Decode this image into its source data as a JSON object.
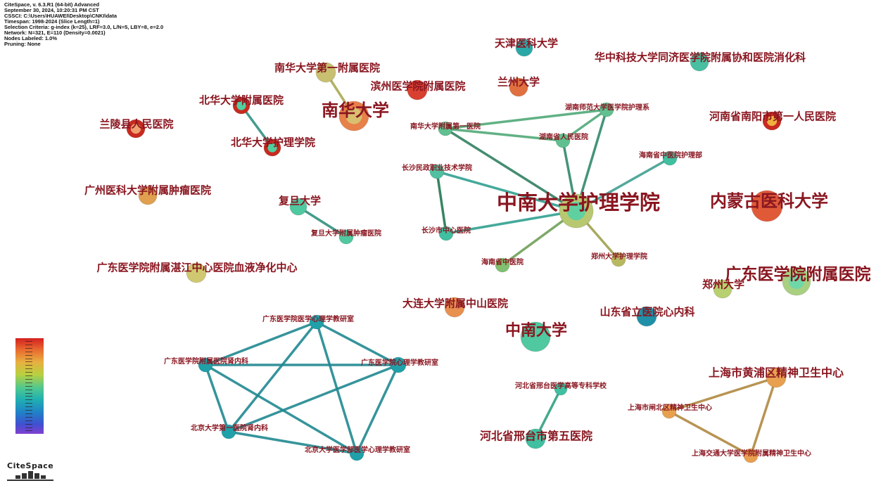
{
  "meta": {
    "lines": [
      "CiteSpace, v. 6.3.R1 (64-bit) Advanced",
      "September 30, 2024, 10:20:31 PM CST",
      "CSSCI: C:\\Users\\HUAWEI\\Desktop\\CNKI\\data",
      "Timespan: 1998-2024 (Slice Length=1)",
      "Selection Criteria: g-index (k=25), LRF=3.0, L/N=5, LBY=8, e=2.0",
      "Network: N=321, E=110 (Density=0.0021)",
      "Nodes Labeled: 1.0%",
      "Pruning: None"
    ]
  },
  "logo": {
    "text": "CiteSpace"
  },
  "colors": {
    "label": "#8a1620"
  },
  "nodes": [
    {
      "id": 1,
      "label": "天津医科大学",
      "color": "#2aa8a8"
    },
    {
      "id": 2,
      "label": "华中科技大学同济医学院附属协和医院消化科",
      "color": "#48bfa0"
    },
    {
      "id": 3,
      "label": "南华大学第一附属医院",
      "color": "#c8c070"
    },
    {
      "id": 4,
      "label": "兰州大学",
      "color": "#e07040"
    },
    {
      "id": 5,
      "label": "滨州医学院附属医院",
      "color": "#d84030"
    },
    {
      "id": 6,
      "label": "北华大学附属医院",
      "color": "#c82a20",
      "inner": "#50d0a0"
    },
    {
      "id": 7,
      "label": "南华大学",
      "color": "#e8804a",
      "inner": "#d8c070"
    },
    {
      "id": 8,
      "label": "兰陵县人民医院",
      "color": "#c82a20",
      "inner": "#f0a070"
    },
    {
      "id": 9,
      "label": "北华大学护理学院",
      "color": "#c82a20",
      "inner": "#50d0a0"
    },
    {
      "id": 10,
      "label": "河南省南阳市第一人民医院",
      "color": "#c82a20",
      "inner": "#f0b040"
    },
    {
      "id": 11,
      "label": "南华大学附属第一医院",
      "color": "#60c090"
    },
    {
      "id": 12,
      "label": "湖南师范大学医学院护理系",
      "color": "#60c090"
    },
    {
      "id": 13,
      "label": "湖南省人民医院",
      "color": "#60c090"
    },
    {
      "id": 14,
      "label": "海南省中医院护理部",
      "color": "#40c0a0"
    },
    {
      "id": 15,
      "label": "长沙民政职业技术学院",
      "color": "#50c0a0"
    },
    {
      "id": 16,
      "label": "中南大学护理学院",
      "color": "#b8c870",
      "inner": "#60d0a0"
    },
    {
      "id": 17,
      "label": "内蒙古医科大学",
      "color": "#e05a38"
    },
    {
      "id": 18,
      "label": "广州医科大学附属肿瘤医院",
      "color": "#e0a050"
    },
    {
      "id": 19,
      "label": "复旦大学",
      "color": "#50c8a0"
    },
    {
      "id": 20,
      "label": "复旦大学附属肿瘤医院",
      "color": "#50c8a0"
    },
    {
      "id": 21,
      "label": "长沙市中心医院",
      "color": "#40c0a0"
    },
    {
      "id": 22,
      "label": "海南省中医院",
      "color": "#80c070"
    },
    {
      "id": 23,
      "label": "郑州大学护理学院",
      "color": "#b8b860"
    },
    {
      "id": 24,
      "label": "广东医学院附属湛江中心医院血液净化中心",
      "color": "#d0c870"
    },
    {
      "id": 25,
      "label": "广东医学院附属医院",
      "color": "#a8d080",
      "inner": "#70d8a8"
    },
    {
      "id": 26,
      "label": "郑州大学",
      "color": "#b8d070"
    },
    {
      "id": 27,
      "label": "大连大学附属中山医院",
      "color": "#e89050"
    },
    {
      "id": 28,
      "label": "山东省立医院心内科",
      "color": "#2090a8"
    },
    {
      "id": 29,
      "label": "中南大学",
      "color": "#50c8a0"
    },
    {
      "id": 30,
      "label": "广东医学院医学心理学教研室",
      "color": "#20a0a8"
    },
    {
      "id": 31,
      "label": "广东医学院附属医院肾内科",
      "color": "#20a0a8"
    },
    {
      "id": 32,
      "label": "广东医学院心理学教研室",
      "color": "#20a0a8"
    },
    {
      "id": 33,
      "label": "北京大学第一医院肾内科",
      "color": "#20a0a8"
    },
    {
      "id": 34,
      "label": "北京大学医学部医学心理学教研室",
      "color": "#20a0a8"
    },
    {
      "id": 35,
      "label": "上海市黄浦区精神卫生中心",
      "color": "#e8a050"
    },
    {
      "id": 36,
      "label": "河北省邢台医学高等专科学校",
      "color": "#40c0a0"
    },
    {
      "id": 37,
      "label": "上海市闸北区精神卫生中心",
      "color": "#e8a050"
    },
    {
      "id": 38,
      "label": "河北省邢台市第五医院",
      "color": "#40c0a0"
    },
    {
      "id": 39,
      "label": "上海交通大学医学院附属精神卫生中心",
      "color": "#e8a050"
    }
  ],
  "edges": [
    [
      3,
      7,
      "#a8a850"
    ],
    [
      6,
      9,
      "#309080"
    ],
    [
      11,
      12,
      "#50a878"
    ],
    [
      11,
      13,
      "#50a878"
    ],
    [
      11,
      16,
      "#308060"
    ],
    [
      12,
      13,
      "#50a878"
    ],
    [
      12,
      16,
      "#308868"
    ],
    [
      13,
      16,
      "#308868"
    ],
    [
      14,
      16,
      "#40a090"
    ],
    [
      15,
      16,
      "#30a090"
    ],
    [
      15,
      21,
      "#207850"
    ],
    [
      21,
      16,
      "#30a090"
    ],
    [
      22,
      16,
      "#70a058"
    ],
    [
      23,
      16,
      "#a0a050"
    ],
    [
      19,
      20,
      "#309080"
    ],
    [
      30,
      31,
      "#208890"
    ],
    [
      30,
      32,
      "#208890"
    ],
    [
      30,
      33,
      "#208890"
    ],
    [
      30,
      34,
      "#208890"
    ],
    [
      31,
      32,
      "#208890"
    ],
    [
      31,
      33,
      "#208890"
    ],
    [
      31,
      34,
      "#208890"
    ],
    [
      32,
      33,
      "#208890"
    ],
    [
      32,
      34,
      "#208890"
    ],
    [
      33,
      34,
      "#208890"
    ],
    [
      35,
      37,
      "#b08840"
    ],
    [
      35,
      39,
      "#b08840"
    ],
    [
      37,
      39,
      "#b08840"
    ],
    [
      36,
      38,
      "#30a080"
    ]
  ]
}
